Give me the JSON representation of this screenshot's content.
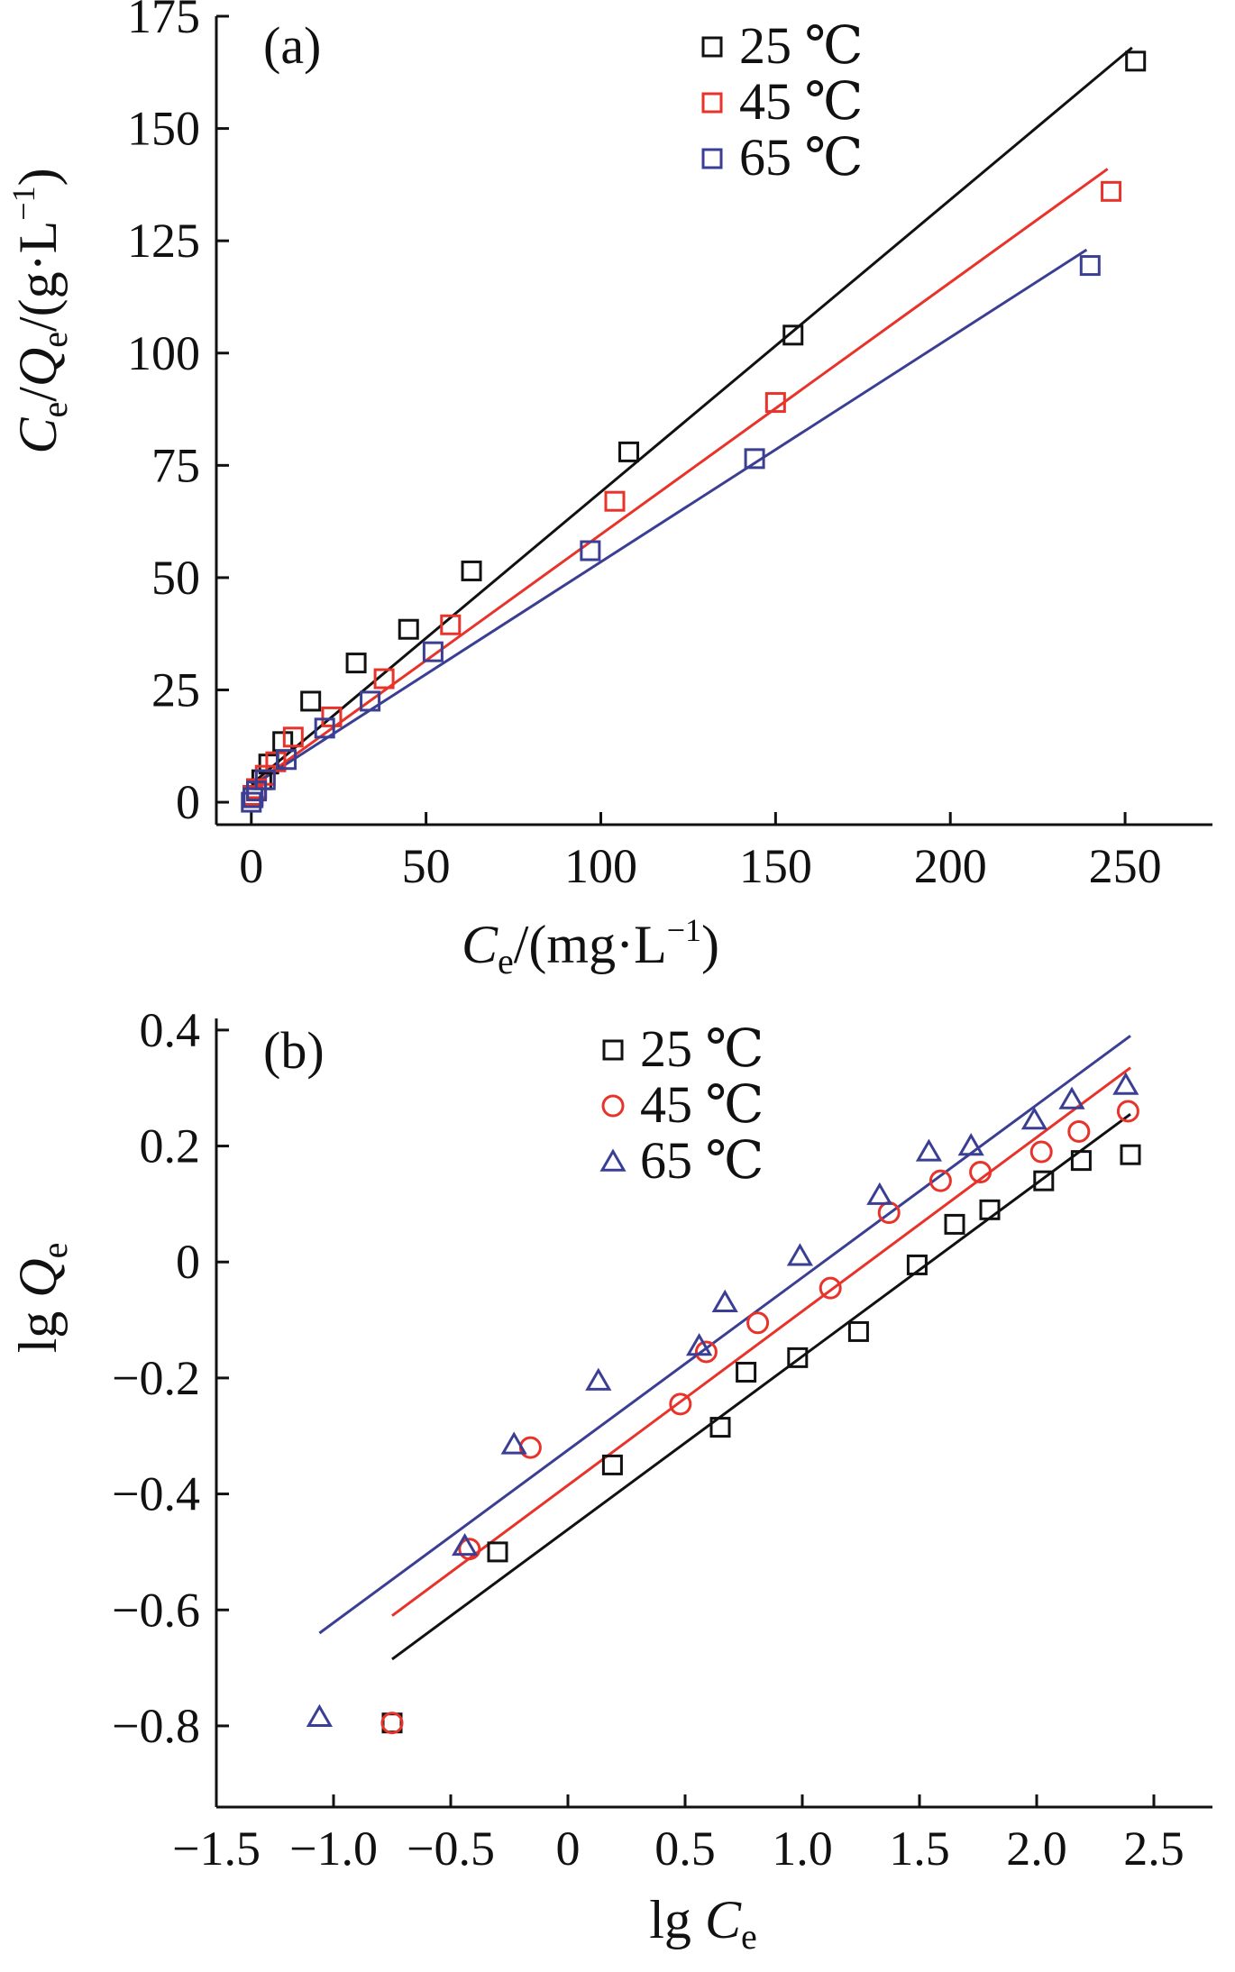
{
  "colors": {
    "c25": "#111111",
    "c45": "#e8332a",
    "c65": "#3b3f94",
    "axis": "#111111"
  },
  "chart_data": [
    {
      "type": "scatter",
      "panel": "(a)",
      "xlabel": {
        "var": "C",
        "sub": "e",
        "unit": "/(mg·L",
        "sup": "−1",
        "close": ")"
      },
      "ylabel": {
        "v1": "C",
        "s1": "e",
        "slash": "/",
        "v2": "Q",
        "s2": "e",
        "unit": "/(g·L",
        "sup": "−1",
        "close": ")"
      },
      "xlim": [
        -10,
        275
      ],
      "ylim": [
        -5,
        175
      ],
      "xticks": [
        0,
        50,
        100,
        150,
        200,
        250
      ],
      "yticks": [
        0,
        25,
        50,
        75,
        100,
        125,
        150,
        175
      ],
      "xtick_labels": [
        "0",
        "50",
        "100",
        "150",
        "200",
        "250"
      ],
      "ytick_labels": [
        "0",
        "25",
        "50",
        "75",
        "100",
        "125",
        "150",
        "175"
      ],
      "legend_position": "top-right",
      "series": [
        {
          "name": "25 ℃",
          "marker": "square",
          "color": "#111111",
          "points": [
            [
              0.5,
              1.5
            ],
            [
              1.5,
              3
            ],
            [
              3,
              5
            ],
            [
              5,
              8.5
            ],
            [
              9,
              13.5
            ],
            [
              17,
              22.5
            ],
            [
              30,
              31
            ],
            [
              45,
              38.5
            ],
            [
              63,
              51.5
            ],
            [
              108,
              78
            ],
            [
              155,
              104
            ],
            [
              253,
              165
            ]
          ],
          "fit": [
            [
              0,
              4
            ],
            [
              252,
              168
            ]
          ]
        },
        {
          "name": "45 ℃",
          "marker": "square",
          "color": "#e8332a",
          "points": [
            [
              0.5,
              1.5
            ],
            [
              1.5,
              3
            ],
            [
              4,
              6
            ],
            [
              7,
              9
            ],
            [
              12,
              14.5
            ],
            [
              23,
              19
            ],
            [
              38,
              27.5
            ],
            [
              57,
              39.5
            ],
            [
              104,
              67
            ],
            [
              150,
              89
            ],
            [
              246,
              136
            ]
          ],
          "fit": [
            [
              0,
              3.5
            ],
            [
              245,
              141
            ]
          ]
        },
        {
          "name": "65 ℃",
          "marker": "square",
          "color": "#3b3f94",
          "points": [
            [
              0,
              0
            ],
            [
              0.5,
              1
            ],
            [
              1.5,
              2.5
            ],
            [
              4,
              5
            ],
            [
              10,
              9.5
            ],
            [
              21,
              16.5
            ],
            [
              34,
              22.5
            ],
            [
              52,
              33.5
            ],
            [
              97,
              56
            ],
            [
              144,
              76.5
            ],
            [
              240,
              119.5
            ]
          ],
          "fit": [
            [
              0,
              3.5
            ],
            [
              239,
              123
            ]
          ]
        }
      ]
    },
    {
      "type": "scatter",
      "panel": "(b)",
      "xlabel": {
        "pre": "lg ",
        "var": "C",
        "sub": "e"
      },
      "ylabel": {
        "pre": "lg ",
        "var": "Q",
        "sub": "e"
      },
      "xlim": [
        -1.5,
        2.75
      ],
      "ylim": [
        -0.94,
        0.42
      ],
      "xticks": [
        -1.5,
        -1.0,
        -0.5,
        0,
        0.5,
        1.0,
        1.5,
        2.0,
        2.5
      ],
      "yticks": [
        -0.8,
        -0.6,
        -0.4,
        -0.2,
        0,
        0.2,
        0.4
      ],
      "xtick_labels": [
        "−1.5",
        "−1.0",
        "−0.5",
        "0",
        "0.5",
        "1.0",
        "1.5",
        "2.0",
        "2.5"
      ],
      "ytick_labels": [
        "−0.8",
        "−0.6",
        "−0.4",
        "−0.2",
        "0",
        "0.2",
        "0.4"
      ],
      "legend_position": "top-center",
      "series": [
        {
          "name": "25 ℃",
          "marker": "square",
          "color": "#111111",
          "points": [
            [
              -0.75,
              -0.795
            ],
            [
              -0.3,
              -0.5
            ],
            [
              0.19,
              -0.35
            ],
            [
              0.65,
              -0.285
            ],
            [
              0.76,
              -0.19
            ],
            [
              0.98,
              -0.165
            ],
            [
              1.24,
              -0.12
            ],
            [
              1.49,
              -0.005
            ],
            [
              1.65,
              0.065
            ],
            [
              1.8,
              0.09
            ],
            [
              2.03,
              0.14
            ],
            [
              2.19,
              0.175
            ],
            [
              2.4,
              0.185
            ]
          ],
          "fit": [
            [
              -0.75,
              -0.685
            ],
            [
              2.4,
              0.255
            ]
          ]
        },
        {
          "name": "45 ℃",
          "marker": "circle",
          "color": "#e8332a",
          "points": [
            [
              -0.75,
              -0.795
            ],
            [
              -0.42,
              -0.495
            ],
            [
              -0.16,
              -0.32
            ],
            [
              0.48,
              -0.245
            ],
            [
              0.59,
              -0.155
            ],
            [
              0.81,
              -0.105
            ],
            [
              1.12,
              -0.045
            ],
            [
              1.37,
              0.085
            ],
            [
              1.59,
              0.14
            ],
            [
              1.76,
              0.155
            ],
            [
              2.02,
              0.19
            ],
            [
              2.18,
              0.225
            ],
            [
              2.39,
              0.26
            ]
          ],
          "fit": [
            [
              -0.75,
              -0.61
            ],
            [
              2.4,
              0.335
            ]
          ]
        },
        {
          "name": "65 ℃",
          "marker": "triangle",
          "color": "#3b3f94",
          "points": [
            [
              -1.06,
              -0.785
            ],
            [
              -0.44,
              -0.49
            ],
            [
              -0.23,
              -0.315
            ],
            [
              0.13,
              -0.205
            ],
            [
              0.56,
              -0.145
            ],
            [
              0.67,
              -0.07
            ],
            [
              0.99,
              0.01
            ],
            [
              1.33,
              0.115
            ],
            [
              1.54,
              0.19
            ],
            [
              1.72,
              0.2
            ],
            [
              1.99,
              0.245
            ],
            [
              2.15,
              0.28
            ],
            [
              2.38,
              0.305
            ]
          ],
          "fit": [
            [
              -1.06,
              -0.64
            ],
            [
              2.4,
              0.39
            ]
          ]
        }
      ]
    }
  ]
}
